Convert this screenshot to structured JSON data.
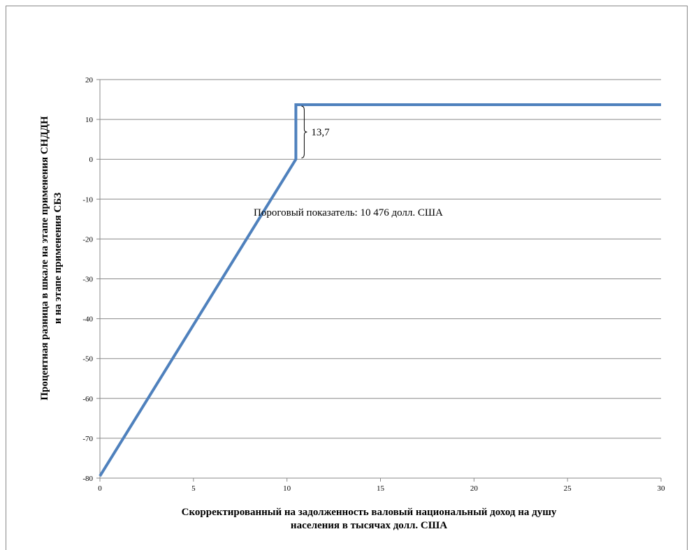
{
  "chart_data": {
    "type": "line",
    "title": "",
    "xlabel_lines": [
      "Скорректированный на задолженность валовый национальный доход на душу",
      "населения в тысячах долл. США"
    ],
    "ylabel_lines": [
      "Процентная разница в шкале на этапе применения СНДДН",
      "и на этапе применения СБЗ"
    ],
    "xlim": [
      0,
      30
    ],
    "ylim": [
      -80,
      20
    ],
    "x_ticks": [
      0,
      5,
      10,
      15,
      20,
      25,
      30
    ],
    "y_ticks": [
      20,
      10,
      0,
      -10,
      -20,
      -30,
      -40,
      -50,
      -60,
      -70,
      -80
    ],
    "grid": "horizontal",
    "legend": "none",
    "series": [
      {
        "color": "#4F81BD",
        "points": [
          {
            "x": 0,
            "y": -79.5
          },
          {
            "x": 10.476,
            "y": 0
          },
          {
            "x": 10.476,
            "y": 13.7
          },
          {
            "x": 30,
            "y": 13.7
          }
        ]
      }
    ],
    "annotations": {
      "jump_label": "13,7",
      "threshold_label": "Пороговый показатель: 10 476 долл. США"
    }
  }
}
